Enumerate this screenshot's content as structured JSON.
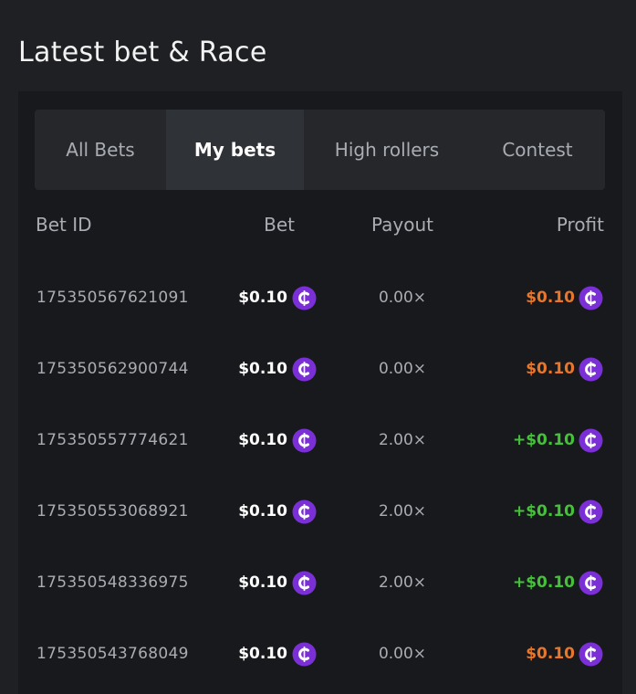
{
  "header": {
    "title": "Latest bet & Race"
  },
  "tabs": [
    "All Bets",
    "My bets",
    "High rollers",
    "Contest"
  ],
  "active_tab": 1,
  "table": {
    "columns": [
      "Bet ID",
      "Bet",
      "Payout",
      "Profit"
    ],
    "rows": [
      [
        "175350567621091",
        "$0.10",
        "0.00×",
        "$0.10"
      ],
      [
        "175350562900744",
        "$0.10",
        "0.00×",
        "$0.10"
      ],
      [
        "175350557774621",
        "$0.10",
        "2.00×",
        "+$0.10"
      ],
      [
        "175350553068921",
        "$0.10",
        "2.00×",
        "+$0.10"
      ],
      [
        "175350548336975",
        "$0.10",
        "2.00×",
        "+$0.10"
      ],
      [
        "175350543768049",
        "$0.10",
        "0.00×",
        "$0.10"
      ]
    ]
  }
}
